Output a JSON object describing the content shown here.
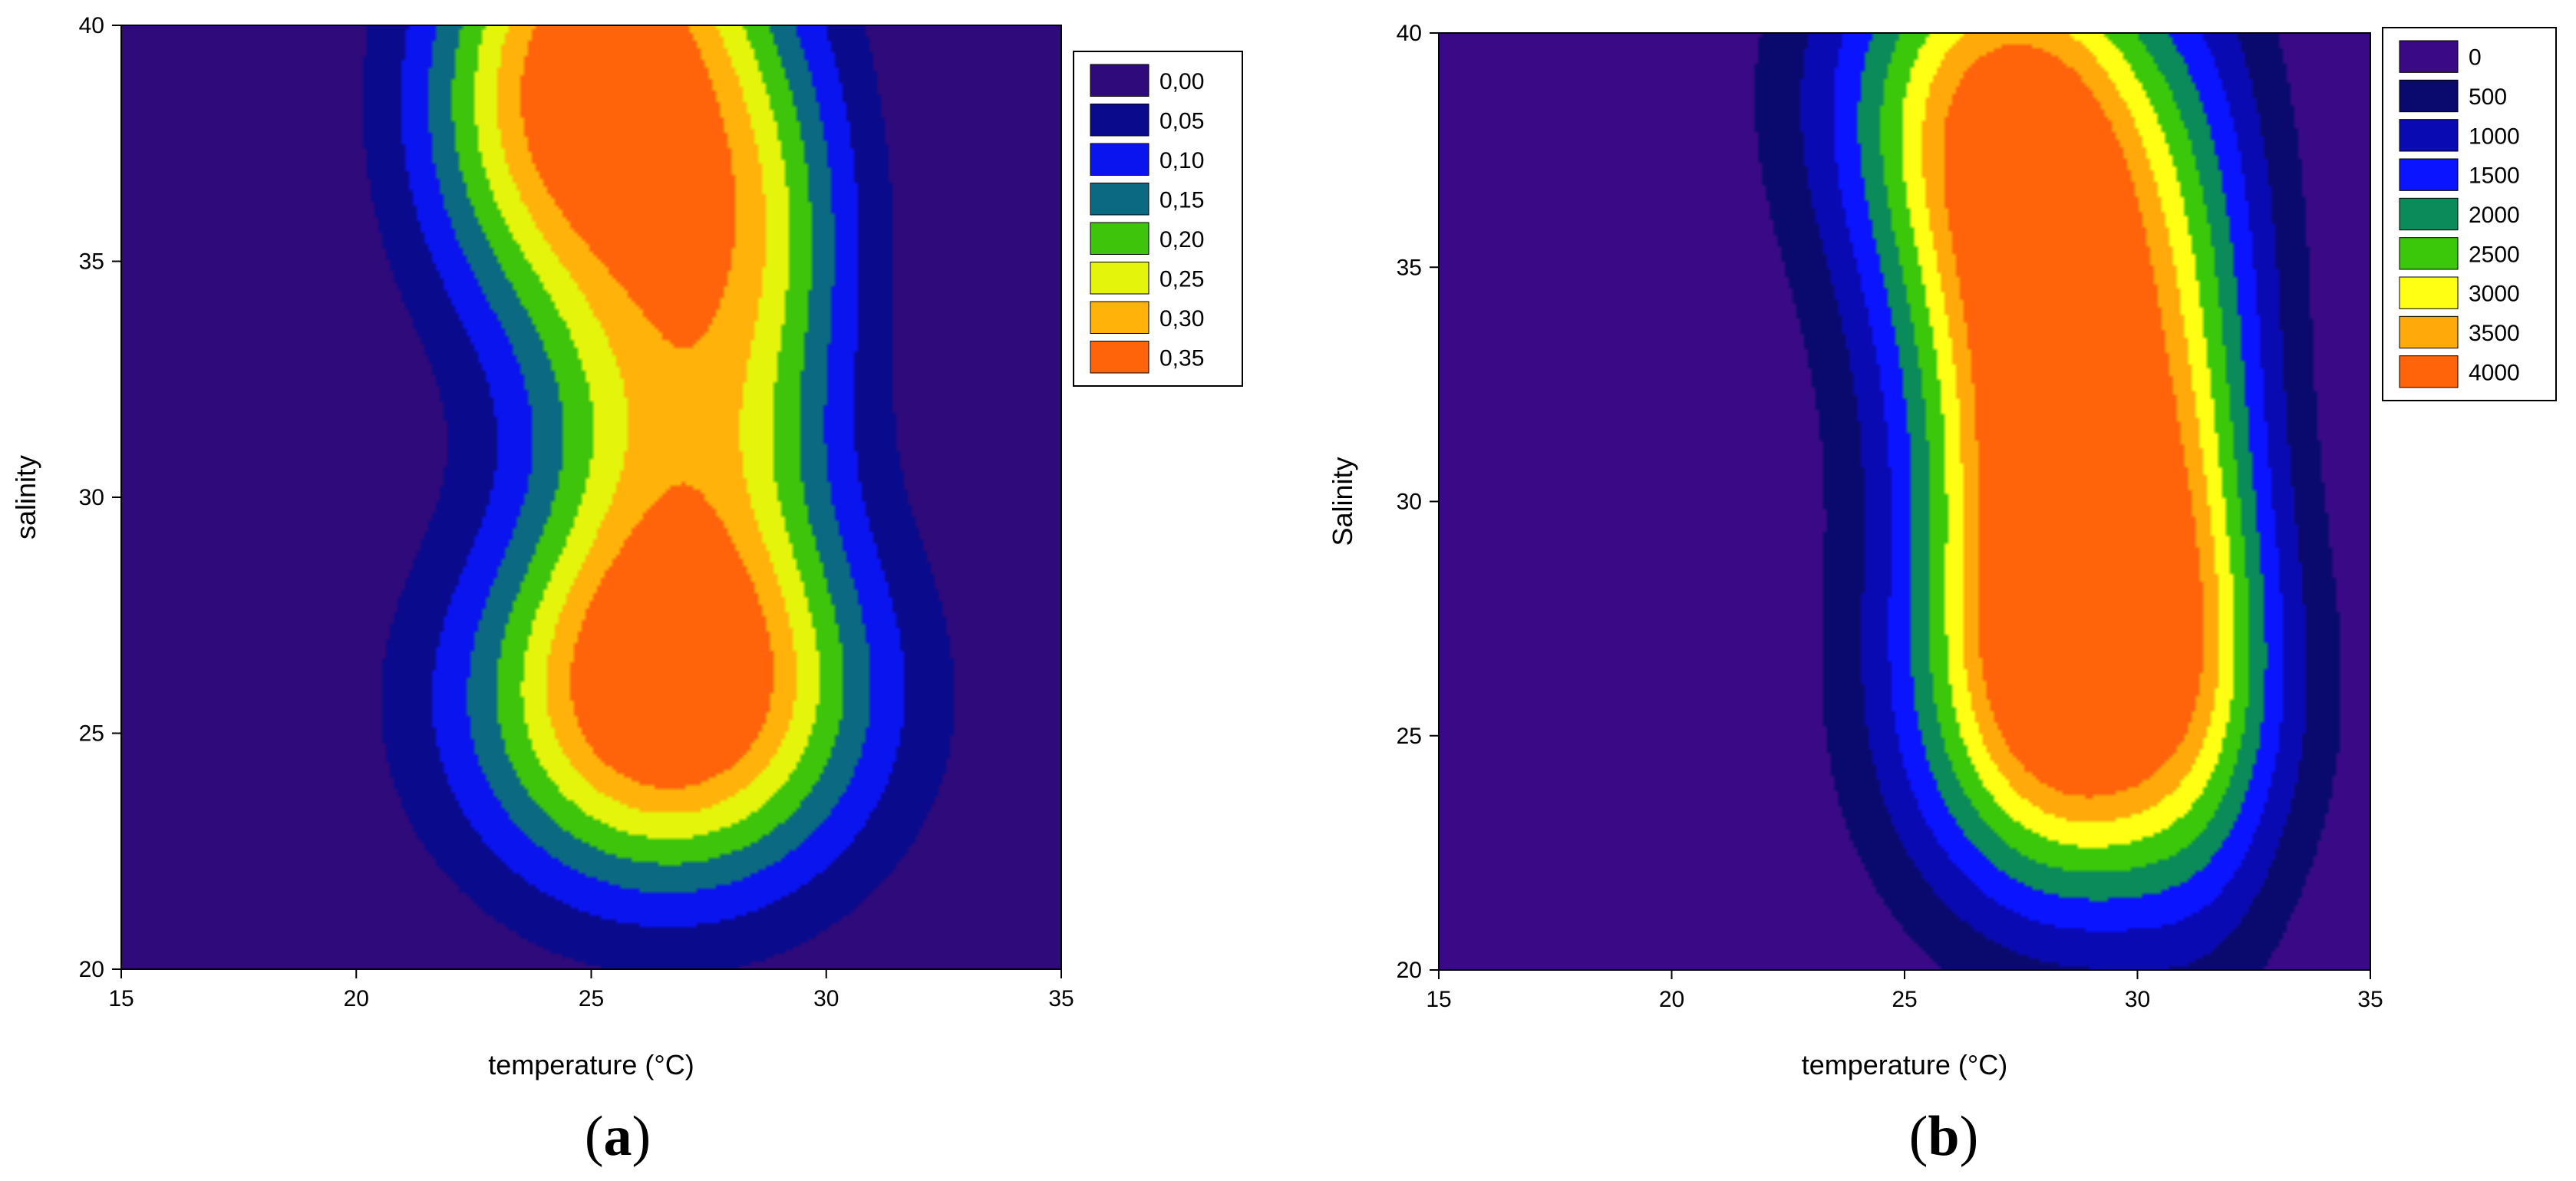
{
  "chart_data": [
    {
      "panel": "(a)",
      "panel_letter": "a",
      "type": "heatmap",
      "xlabel": "temperature (°C)",
      "ylabel": "salinity",
      "xlim": [
        15,
        35
      ],
      "ylim": [
        20,
        40
      ],
      "x_ticks": [
        15,
        20,
        25,
        30,
        35
      ],
      "y_ticks": [
        20,
        25,
        30,
        35,
        40
      ],
      "x_tick_labels": [
        "15",
        "20",
        "25",
        "30",
        "35"
      ],
      "y_tick_labels": [
        "20",
        "25",
        "30",
        "35",
        "40"
      ],
      "legend_position": "top-right",
      "color_levels": [
        0.0,
        0.05,
        0.1,
        0.15,
        0.2,
        0.25,
        0.3,
        0.35
      ],
      "legend_entries": [
        "0,00",
        "0,05",
        "0,10",
        "0,15",
        "0,20",
        "0,25",
        "0,30",
        "0,35"
      ],
      "legend_colors": [
        "#2e0a7a",
        "#0a0a8c",
        "#0a14ee",
        "#0b6a82",
        "#3ec40a",
        "#e4f40a",
        "#ffb20a",
        "#ff640a"
      ],
      "surface": {
        "base": 0.0,
        "blobs": [
          {
            "x": 26.6,
            "y": 25.6,
            "sx": 3.0,
            "sy": 2.8,
            "a": 0.38
          },
          {
            "x": 25.6,
            "y": 39.2,
            "sx": 2.3,
            "sy": 3.8,
            "a": 0.37
          },
          {
            "x": 27.0,
            "y": 31.5,
            "sx": 2.2,
            "sy": 4.0,
            "a": 0.24
          },
          {
            "x": 28.8,
            "y": 36.0,
            "sx": 1.5,
            "sy": 3.0,
            "a": 0.1
          },
          {
            "x": 23.0,
            "y": 38.0,
            "sx": 1.8,
            "sy": 3.0,
            "a": 0.1
          }
        ]
      }
    },
    {
      "panel": "(b)",
      "panel_letter": "b",
      "type": "heatmap",
      "xlabel": "temperature (°C)",
      "ylabel": "Salinity",
      "xlim": [
        15,
        35
      ],
      "ylim": [
        20,
        40
      ],
      "x_ticks": [
        15,
        20,
        25,
        30,
        35
      ],
      "y_ticks": [
        20,
        25,
        30,
        35,
        40
      ],
      "x_tick_labels": [
        "15",
        "20",
        "25",
        "30",
        "35"
      ],
      "y_tick_labels": [
        "20",
        "25",
        "30",
        "35",
        "40"
      ],
      "legend_position": "top-right",
      "color_levels": [
        0,
        500,
        1000,
        1500,
        2000,
        2500,
        3000,
        3500,
        4000
      ],
      "legend_entries": [
        "0",
        "500",
        "1000",
        "1500",
        "2000",
        "2500",
        "3000",
        "3500",
        "4000"
      ],
      "legend_colors": [
        "#3a0a86",
        "#0a0a6e",
        "#0a0ab2",
        "#0a14ff",
        "#0b8a5a",
        "#3cc80a",
        "#ffff14",
        "#ffaa0a",
        "#ff640a"
      ],
      "surface": {
        "base": 0,
        "blobs": [
          {
            "x": 28.8,
            "y": 25.6,
            "sx": 2.6,
            "sy": 3.2,
            "a": 4300
          },
          {
            "x": 28.2,
            "y": 34.8,
            "sx": 2.4,
            "sy": 4.2,
            "a": 4200
          },
          {
            "x": 28.8,
            "y": 30.0,
            "sx": 2.0,
            "sy": 3.0,
            "a": 2000
          },
          {
            "x": 26.5,
            "y": 39.0,
            "sx": 2.6,
            "sy": 3.0,
            "a": 2200
          },
          {
            "x": 31.5,
            "y": 30.0,
            "sx": 1.2,
            "sy": 7.0,
            "a": 900
          }
        ]
      }
    }
  ]
}
